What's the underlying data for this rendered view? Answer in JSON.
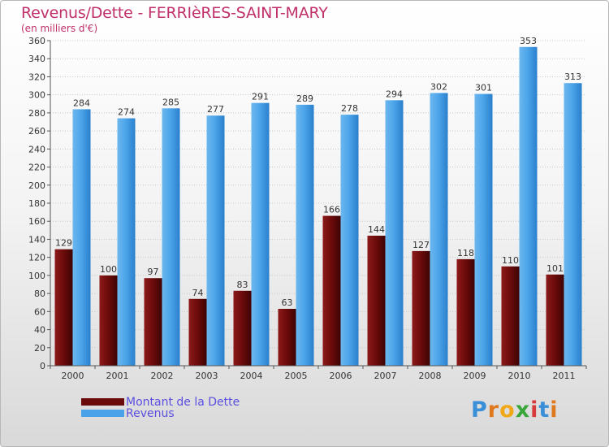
{
  "header": {
    "title": "Revenus/Dette - FERRIèRES-SAINT-MARY",
    "subtitle": "(en milliers d'€)"
  },
  "legend": [
    {
      "label": "Montant de la Dette",
      "color": "#6b0a0a"
    },
    {
      "label": "Revenus",
      "color": "#4aa3e8"
    }
  ],
  "logo": {
    "text": "Proxiti",
    "letters": [
      {
        "ch": "P",
        "color": "#3a8fd9"
      },
      {
        "ch": "r",
        "color": "#e0781e"
      },
      {
        "ch": "o",
        "color": "#f0a818"
      },
      {
        "ch": "x",
        "color": "#3aa63a"
      },
      {
        "ch": "i",
        "color": "#d83a3a"
      },
      {
        "ch": "t",
        "color": "#3a8fd9"
      },
      {
        "ch": "i",
        "color": "#e0781e"
      }
    ]
  },
  "chart_data": {
    "type": "bar",
    "categories": [
      "2000",
      "2001",
      "2002",
      "2003",
      "2004",
      "2005",
      "2006",
      "2007",
      "2008",
      "2009",
      "2010",
      "2011"
    ],
    "series": [
      {
        "name": "Montant de la Dette",
        "values": [
          129,
          100,
          97,
          74,
          83,
          63,
          166,
          144,
          127,
          118,
          110,
          101
        ],
        "color": "#6b0a0a"
      },
      {
        "name": "Revenus",
        "values": [
          284,
          274,
          285,
          277,
          291,
          289,
          278,
          294,
          302,
          301,
          353,
          313
        ],
        "color": "#4aa3e8"
      }
    ],
    "title": "Revenus/Dette - FERRIèRES-SAINT-MARY",
    "ylabel": "(en milliers d'€)",
    "ylim": [
      0,
      360
    ],
    "ytick_step": 20,
    "grid": true,
    "legend_position": "bottom-left"
  }
}
